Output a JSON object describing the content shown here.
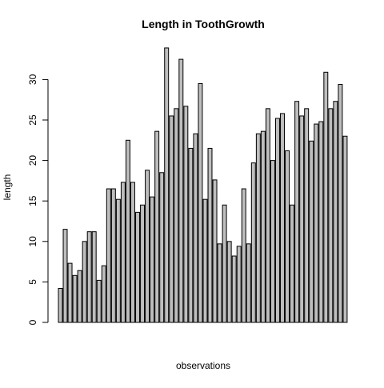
{
  "chart_data": {
    "type": "bar",
    "title": "Length in ToothGrowth",
    "xlabel": "observations",
    "ylabel": "length",
    "ylim": [
      0,
      34
    ],
    "yticks": [
      0,
      5,
      10,
      15,
      20,
      25,
      30
    ],
    "grid": false,
    "legend": "none",
    "bar_fill": "#bebebe",
    "bar_stroke": "#000000",
    "values": [
      4.2,
      11.5,
      7.3,
      5.8,
      6.4,
      10.0,
      11.2,
      11.2,
      5.2,
      7.0,
      16.5,
      16.5,
      15.2,
      17.3,
      22.5,
      17.3,
      13.6,
      14.5,
      18.8,
      15.5,
      23.6,
      18.5,
      33.9,
      25.5,
      26.4,
      32.5,
      26.7,
      21.5,
      23.3,
      29.5,
      15.2,
      21.5,
      17.6,
      9.7,
      14.5,
      10.0,
      8.2,
      9.4,
      16.5,
      9.7,
      19.7,
      23.3,
      23.6,
      26.4,
      20.0,
      25.2,
      25.8,
      21.2,
      14.5,
      27.3,
      25.5,
      26.4,
      22.4,
      24.5,
      24.8,
      30.9,
      26.4,
      27.3,
      29.4,
      23.0
    ]
  }
}
